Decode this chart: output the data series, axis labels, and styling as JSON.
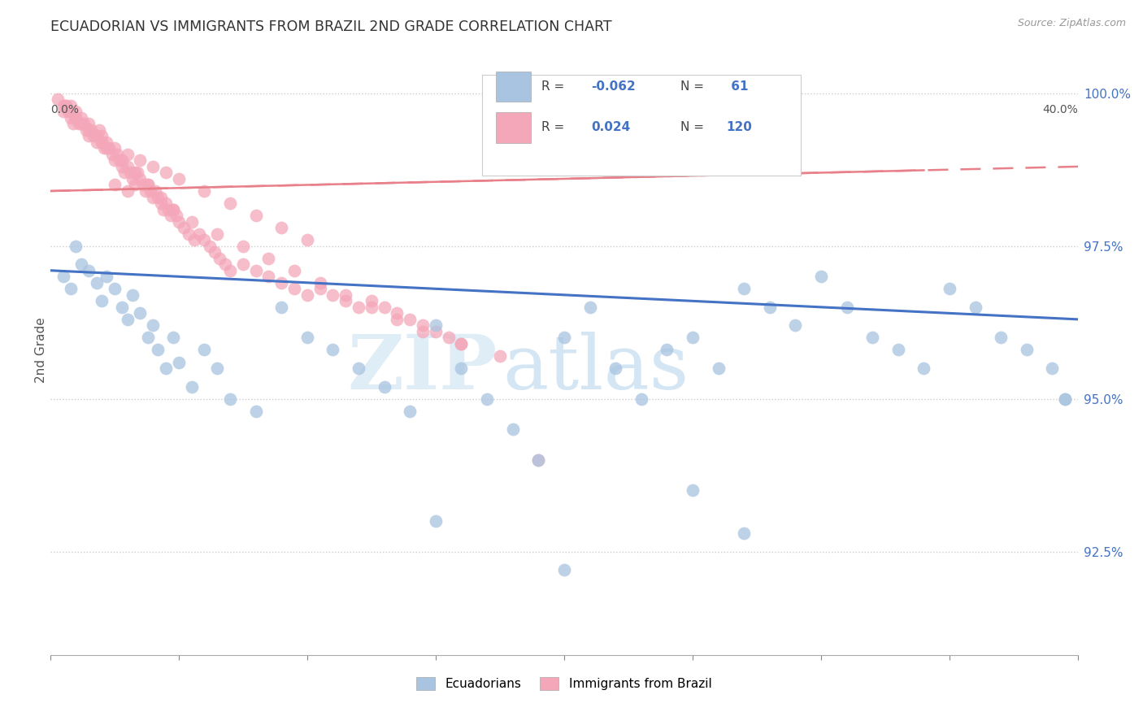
{
  "title": "ECUADORIAN VS IMMIGRANTS FROM BRAZIL 2ND GRADE CORRELATION CHART",
  "source": "Source: ZipAtlas.com",
  "ylabel": "2nd Grade",
  "right_yticks": [
    "100.0%",
    "97.5%",
    "95.0%",
    "92.5%"
  ],
  "right_ytick_vals": [
    1.0,
    0.975,
    0.95,
    0.925
  ],
  "xmin": 0.0,
  "xmax": 0.4,
  "ymin": 0.908,
  "ymax": 1.008,
  "blue_color": "#a8c4e0",
  "pink_color": "#f4a7b9",
  "line_blue": "#4472c4",
  "line_pink": "#e8808a",
  "watermark_zip": "ZIP",
  "watermark_atlas": "atlas",
  "blue_line_y0": 0.971,
  "blue_line_y1": 0.963,
  "pink_line_y0": 0.984,
  "pink_line_y1": 0.988,
  "blue_x": [
    0.005,
    0.008,
    0.01,
    0.012,
    0.015,
    0.018,
    0.02,
    0.022,
    0.025,
    0.028,
    0.03,
    0.032,
    0.035,
    0.038,
    0.04,
    0.042,
    0.045,
    0.048,
    0.05,
    0.055,
    0.06,
    0.065,
    0.07,
    0.08,
    0.09,
    0.1,
    0.11,
    0.12,
    0.13,
    0.14,
    0.15,
    0.16,
    0.17,
    0.18,
    0.19,
    0.2,
    0.21,
    0.22,
    0.23,
    0.24,
    0.25,
    0.26,
    0.27,
    0.28,
    0.29,
    0.3,
    0.31,
    0.32,
    0.33,
    0.34,
    0.35,
    0.36,
    0.37,
    0.38,
    0.39,
    0.395,
    0.25,
    0.27,
    0.15,
    0.2,
    0.395
  ],
  "blue_y": [
    0.97,
    0.968,
    0.975,
    0.972,
    0.971,
    0.969,
    0.966,
    0.97,
    0.968,
    0.965,
    0.963,
    0.967,
    0.964,
    0.96,
    0.962,
    0.958,
    0.955,
    0.96,
    0.956,
    0.952,
    0.958,
    0.955,
    0.95,
    0.948,
    0.965,
    0.96,
    0.958,
    0.955,
    0.952,
    0.948,
    0.962,
    0.955,
    0.95,
    0.945,
    0.94,
    0.96,
    0.965,
    0.955,
    0.95,
    0.958,
    0.96,
    0.955,
    0.968,
    0.965,
    0.962,
    0.97,
    0.965,
    0.96,
    0.958,
    0.955,
    0.968,
    0.965,
    0.96,
    0.958,
    0.955,
    0.95,
    0.935,
    0.928,
    0.93,
    0.922,
    0.95
  ],
  "pink_x": [
    0.003,
    0.005,
    0.005,
    0.006,
    0.007,
    0.008,
    0.008,
    0.009,
    0.01,
    0.01,
    0.011,
    0.012,
    0.013,
    0.014,
    0.015,
    0.015,
    0.016,
    0.017,
    0.018,
    0.019,
    0.02,
    0.02,
    0.021,
    0.022,
    0.023,
    0.024,
    0.025,
    0.026,
    0.027,
    0.028,
    0.029,
    0.03,
    0.031,
    0.032,
    0.033,
    0.034,
    0.035,
    0.036,
    0.037,
    0.038,
    0.039,
    0.04,
    0.041,
    0.042,
    0.043,
    0.044,
    0.045,
    0.046,
    0.047,
    0.048,
    0.049,
    0.05,
    0.052,
    0.054,
    0.056,
    0.058,
    0.06,
    0.062,
    0.064,
    0.066,
    0.068,
    0.07,
    0.075,
    0.08,
    0.085,
    0.09,
    0.095,
    0.1,
    0.105,
    0.11,
    0.115,
    0.12,
    0.125,
    0.13,
    0.135,
    0.14,
    0.145,
    0.15,
    0.155,
    0.16,
    0.006,
    0.008,
    0.01,
    0.012,
    0.015,
    0.018,
    0.02,
    0.025,
    0.03,
    0.035,
    0.04,
    0.045,
    0.05,
    0.06,
    0.07,
    0.08,
    0.09,
    0.1,
    0.025,
    0.03,
    0.018,
    0.022,
    0.028,
    0.033,
    0.038,
    0.043,
    0.048,
    0.055,
    0.065,
    0.075,
    0.085,
    0.095,
    0.105,
    0.115,
    0.125,
    0.135,
    0.145,
    0.16,
    0.175,
    0.19
  ],
  "pink_y": [
    0.999,
    0.998,
    0.997,
    0.998,
    0.997,
    0.996,
    0.998,
    0.995,
    0.997,
    0.996,
    0.995,
    0.996,
    0.995,
    0.994,
    0.993,
    0.995,
    0.994,
    0.993,
    0.992,
    0.994,
    0.993,
    0.992,
    0.991,
    0.992,
    0.991,
    0.99,
    0.989,
    0.99,
    0.989,
    0.988,
    0.987,
    0.988,
    0.987,
    0.986,
    0.985,
    0.987,
    0.986,
    0.985,
    0.984,
    0.985,
    0.984,
    0.983,
    0.984,
    0.983,
    0.982,
    0.981,
    0.982,
    0.981,
    0.98,
    0.981,
    0.98,
    0.979,
    0.978,
    0.977,
    0.976,
    0.977,
    0.976,
    0.975,
    0.974,
    0.973,
    0.972,
    0.971,
    0.972,
    0.971,
    0.97,
    0.969,
    0.968,
    0.967,
    0.968,
    0.967,
    0.966,
    0.965,
    0.966,
    0.965,
    0.964,
    0.963,
    0.962,
    0.961,
    0.96,
    0.959,
    0.998,
    0.997,
    0.996,
    0.995,
    0.994,
    0.993,
    0.992,
    0.991,
    0.99,
    0.989,
    0.988,
    0.987,
    0.986,
    0.984,
    0.982,
    0.98,
    0.978,
    0.976,
    0.985,
    0.984,
    0.993,
    0.991,
    0.989,
    0.987,
    0.985,
    0.983,
    0.981,
    0.979,
    0.977,
    0.975,
    0.973,
    0.971,
    0.969,
    0.967,
    0.965,
    0.963,
    0.961,
    0.959,
    0.957,
    0.94
  ]
}
